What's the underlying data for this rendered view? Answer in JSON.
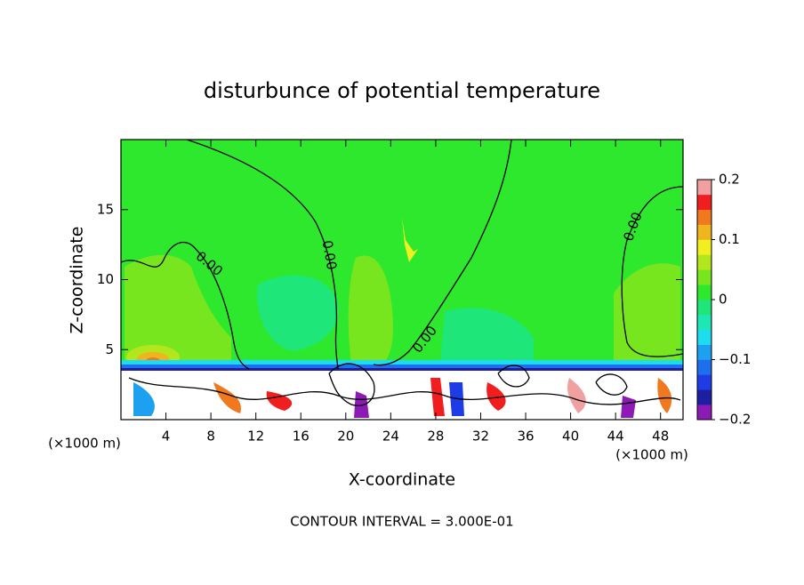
{
  "chart_data": {
    "type": "contour",
    "title": "disturbunce of potential temperature",
    "x_label": "X-coordinate",
    "y_label": "Z-coordinate",
    "x_unit": "(×1000 m)",
    "y_unit": "(×1000 m)",
    "footer": "CONTOUR INTERVAL = 3.000E-01",
    "contour_labels": [
      "0.00",
      "0.00",
      "0.00",
      "0.00"
    ],
    "xlim": [
      0,
      50
    ],
    "xticks": [
      4,
      8,
      12,
      16,
      20,
      24,
      28,
      32,
      36,
      40,
      44,
      48
    ],
    "ylim": [
      0,
      20
    ],
    "yticks": [
      5,
      10,
      15
    ],
    "colorbar": {
      "lim": [
        -0.2,
        0.2
      ],
      "ticks": [
        {
          "value": -0.2,
          "label": "−0.2"
        },
        {
          "value": -0.1,
          "label": "−0.1"
        },
        0,
        0.1,
        0.2
      ],
      "colors": [
        "#8c1ab4",
        "#1e1ea0",
        "#1e3ce6",
        "#1e6ef0",
        "#1ea0f0",
        "#1edcf0",
        "#1ee6b4",
        "#1ee678",
        "#2ee82e",
        "#78e61e",
        "#b4e61e",
        "#f0f01e",
        "#f0b41e",
        "#f0781e",
        "#f01e1e",
        "#f0a0a0"
      ]
    }
  }
}
